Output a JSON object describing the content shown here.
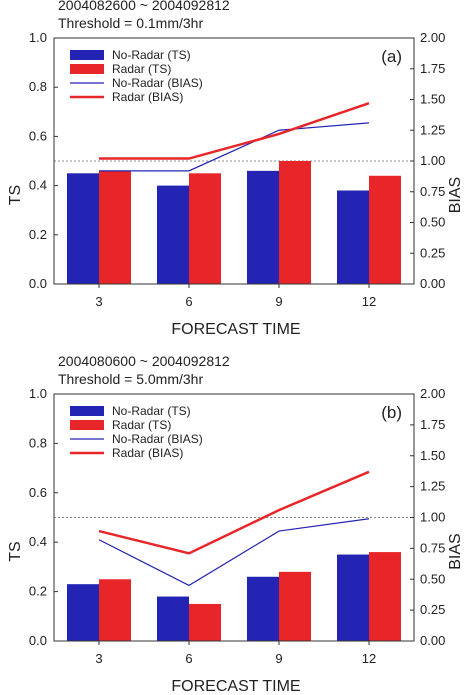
{
  "chart_data": [
    {
      "type": "bar",
      "date_range": "2004082600 ~ 2004092812",
      "threshold": "Threshold = 0.1mm/3hr",
      "panel_label": "(a)",
      "xlabel": "FORECAST TIME",
      "ylabel": "TS",
      "y2label": "BIAS",
      "categories": [
        "3",
        "6",
        "9",
        "12"
      ],
      "ylim": [
        0,
        1.0
      ],
      "y2lim": [
        0,
        2.0
      ],
      "yticks": [
        "0.0",
        "0.2",
        "0.4",
        "0.6",
        "0.8",
        "1.0"
      ],
      "y2ticks": [
        "0.00",
        "0.25",
        "0.50",
        "0.75",
        "1.00",
        "1.25",
        "1.50",
        "1.75",
        "2.00"
      ],
      "reference_bias": 1.0,
      "series": [
        {
          "name": "No-Radar (TS)",
          "kind": "bar",
          "axis": "left",
          "color": "#2323b4",
          "values": [
            0.45,
            0.4,
            0.46,
            0.38
          ]
        },
        {
          "name": "Radar (TS)",
          "kind": "bar",
          "axis": "left",
          "color": "#e8262a",
          "values": [
            0.46,
            0.45,
            0.5,
            0.44
          ]
        },
        {
          "name": "No-Radar (BIAS)",
          "kind": "line",
          "axis": "right",
          "color": "#2323b4",
          "values": [
            0.92,
            0.92,
            1.25,
            1.31
          ]
        },
        {
          "name": "Radar (BIAS)",
          "kind": "line",
          "axis": "right",
          "color": "#e8262a",
          "values": [
            1.02,
            1.02,
            1.22,
            1.47
          ]
        }
      ]
    },
    {
      "type": "bar",
      "date_range": "2004080600 ~ 2004092812",
      "threshold": "Threshold = 5.0mm/3hr",
      "panel_label": "(b)",
      "xlabel": "FORECAST TIME",
      "ylabel": "TS",
      "y2label": "BIAS",
      "categories": [
        "3",
        "6",
        "9",
        "12"
      ],
      "ylim": [
        0,
        1.0
      ],
      "y2lim": [
        0,
        2.0
      ],
      "yticks": [
        "0.0",
        "0.2",
        "0.4",
        "0.6",
        "0.8",
        "1.0"
      ],
      "y2ticks": [
        "0.00",
        "0.25",
        "0.50",
        "0.75",
        "1.00",
        "1.25",
        "1.50",
        "1.75",
        "2.00"
      ],
      "reference_bias": 1.0,
      "series": [
        {
          "name": "No-Radar (TS)",
          "kind": "bar",
          "axis": "left",
          "color": "#2323b4",
          "values": [
            0.23,
            0.18,
            0.26,
            0.35
          ]
        },
        {
          "name": "Radar (TS)",
          "kind": "bar",
          "axis": "left",
          "color": "#e8262a",
          "values": [
            0.25,
            0.15,
            0.28,
            0.36
          ]
        },
        {
          "name": "No-Radar (BIAS)",
          "kind": "line",
          "axis": "right",
          "color": "#2323b4",
          "values": [
            0.82,
            0.45,
            0.89,
            0.99
          ]
        },
        {
          "name": "Radar (BIAS)",
          "kind": "line",
          "axis": "right",
          "color": "#e8262a",
          "values": [
            0.89,
            0.71,
            1.06,
            1.37
          ]
        }
      ]
    }
  ]
}
